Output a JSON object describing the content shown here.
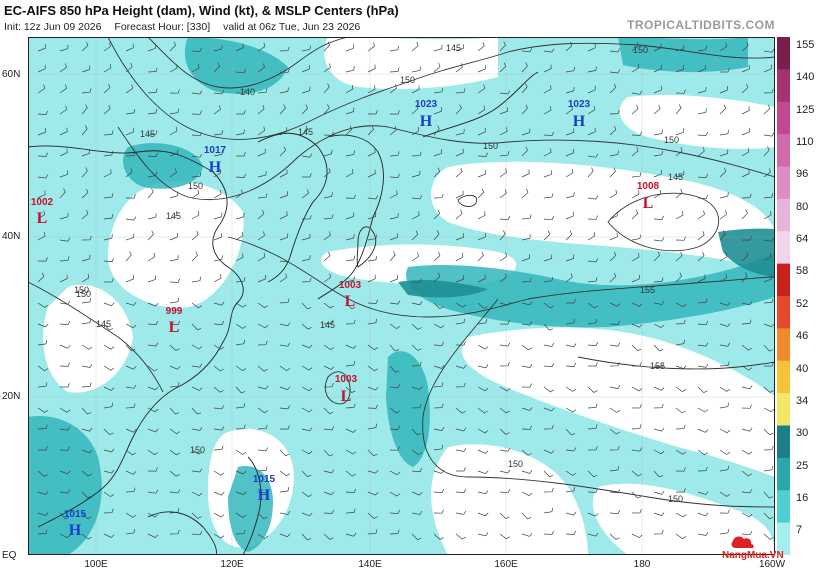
{
  "header": {
    "title": "EC-AIFS 850 hPa Height (dam), Wind (kt), & MSLP Centers (hPa)",
    "init": "Init: 12z Jun 09 2026",
    "forecast_hour": "Forecast Hour: [330]",
    "valid": "valid at 06z Tue, Jun 23 2026",
    "site": "TROPICALTIDBITS.COM"
  },
  "axes": {
    "lat_labels": [
      "60N",
      "40N",
      "20N",
      "EQ"
    ],
    "lon_labels": [
      "100E",
      "120E",
      "140E",
      "160E",
      "180",
      "160W"
    ]
  },
  "colorbar": {
    "labels": [
      "155",
      "140",
      "125",
      "110",
      "96",
      "80",
      "64",
      "58",
      "52",
      "46",
      "40",
      "34",
      "30",
      "25",
      "16",
      "7"
    ],
    "colors": [
      "#7a1f4d",
      "#a3336e",
      "#c2488f",
      "#d26aa9",
      "#dd8cc4",
      "#e7b5da",
      "#f0d6ec",
      "#c8201d",
      "#e4492a",
      "#f08a2c",
      "#f7c13a",
      "#f4e667",
      "#1c7f88",
      "#2aa6ad",
      "#4fcfd2",
      "#a6eff0"
    ]
  },
  "centers": [
    {
      "type": "H",
      "value": "1023",
      "color": "#1a3cc8"
    },
    {
      "type": "H",
      "value": "1023",
      "color": "#1a3cc8"
    },
    {
      "type": "H",
      "value": "1017",
      "color": "#1a3cc8"
    },
    {
      "type": "L",
      "value": "1002",
      "color": "#c8102e"
    },
    {
      "type": "L",
      "value": "1008",
      "color": "#c8102e"
    },
    {
      "type": "L",
      "value": "1003",
      "color": "#c8102e"
    },
    {
      "type": "L",
      "value": "999",
      "color": "#c8102e"
    },
    {
      "type": "L",
      "value": "1003",
      "color": "#c8102e"
    },
    {
      "type": "H",
      "value": "1015",
      "color": "#1a3cc8"
    },
    {
      "type": "H",
      "value": "1015",
      "color": "#1a3cc8"
    }
  ],
  "contour_labels": [
    "145",
    "150",
    "140",
    "145",
    "150",
    "150",
    "145",
    "145",
    "150",
    "145",
    "145",
    "150",
    "155",
    "155",
    "150",
    "150",
    "150",
    "145",
    "150",
    "150"
  ],
  "watermark": {
    "text": "NangMua.VN"
  }
}
